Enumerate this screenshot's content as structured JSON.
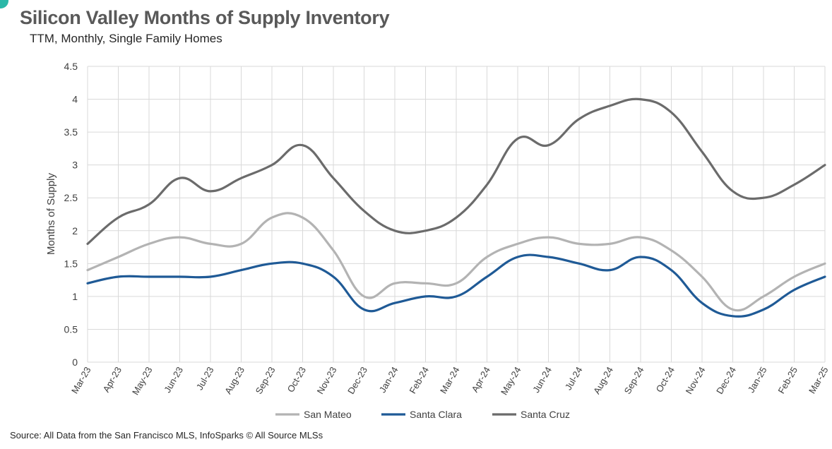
{
  "header": {
    "title": "Silicon Valley Months of Supply Inventory",
    "subtitle": "TTM, Monthly, Single Family Homes"
  },
  "footer": {
    "source": "Source: All Data from the San Francisco MLS, InfoSparks © All Source MLSs"
  },
  "colors": {
    "san_mateo": "#b3b3b3",
    "santa_clara": "#1f5a96",
    "santa_cruz": "#6b6b6b",
    "grid": "#d9d9d9",
    "brand_accent": "#2bb8a8"
  },
  "chart_data": {
    "type": "line",
    "title": "Silicon Valley Months of Supply Inventory",
    "subtitle": "TTM, Monthly, Single Family Homes",
    "ylabel": "Months of Supply",
    "xlabel": "",
    "ylim": [
      0,
      4.5
    ],
    "yticks": [
      "0",
      "0.5",
      "1",
      "1.5",
      "2",
      "2.5",
      "3",
      "3.5",
      "4",
      "4.5"
    ],
    "grid": true,
    "legend_position": "bottom",
    "categories": [
      "Mar-23",
      "Apr-23",
      "May-23",
      "Jun-23",
      "Jul-23",
      "Aug-23",
      "Sep-23",
      "Oct-23",
      "Nov-23",
      "Dec-23",
      "Jan-24",
      "Feb-24",
      "Mar-24",
      "Apr-24",
      "May-24",
      "Jun-24",
      "Jul-24",
      "Aug-24",
      "Sep-24",
      "Oct-24",
      "Nov-24",
      "Dec-24",
      "Jan-25",
      "Feb-25",
      "Mar-25"
    ],
    "series": [
      {
        "name": "San Mateo",
        "color_key": "san_mateo",
        "values": [
          1.4,
          1.6,
          1.8,
          1.9,
          1.8,
          1.8,
          2.2,
          2.2,
          1.7,
          1.0,
          1.2,
          1.2,
          1.2,
          1.6,
          1.8,
          1.9,
          1.8,
          1.8,
          1.9,
          1.7,
          1.3,
          0.8,
          1.0,
          1.3,
          1.5
        ]
      },
      {
        "name": "Santa Clara",
        "color_key": "santa_clara",
        "values": [
          1.2,
          1.3,
          1.3,
          1.3,
          1.3,
          1.4,
          1.5,
          1.5,
          1.3,
          0.8,
          0.9,
          1.0,
          1.0,
          1.3,
          1.6,
          1.6,
          1.5,
          1.4,
          1.6,
          1.4,
          0.9,
          0.7,
          0.8,
          1.1,
          1.3
        ]
      },
      {
        "name": "Santa Cruz",
        "color_key": "santa_cruz",
        "values": [
          1.8,
          2.2,
          2.4,
          2.8,
          2.6,
          2.8,
          3.0,
          3.3,
          2.8,
          2.3,
          2.0,
          2.0,
          2.2,
          2.7,
          3.4,
          3.3,
          3.7,
          3.9,
          4.0,
          3.8,
          3.2,
          2.6,
          2.5,
          2.7,
          3.0
        ]
      }
    ]
  }
}
